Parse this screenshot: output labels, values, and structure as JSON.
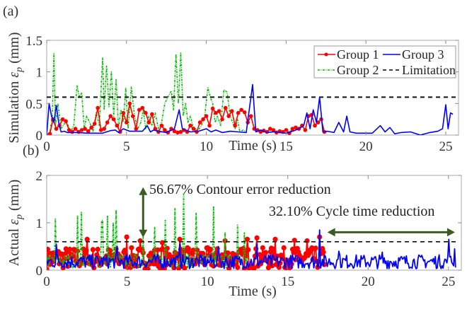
{
  "chart_data": [
    {
      "panel": "(a)",
      "type": "line",
      "ylabel_prefix": "Simulation ",
      "ylabel_symbol": "ε",
      "ylabel_sub": "p",
      "ylabel_suffix": " (mm)",
      "xlabel": "Time (s)",
      "xlim": [
        0,
        25.8
      ],
      "ylim": [
        0,
        1.5
      ],
      "xticks": [
        0,
        5,
        10,
        15,
        20,
        25
      ],
      "yticks": [
        0,
        0.5,
        1,
        1.5
      ],
      "ytick_labels": [
        "0",
        "0.5",
        "1",
        "1.5"
      ],
      "xtick_labels": [
        "0",
        "5",
        "10",
        "15",
        "20",
        "25"
      ],
      "grid": false,
      "legend": {
        "placement": "top-right",
        "columns": 2,
        "entries": [
          "Group 1",
          "Group 3",
          "Group 2",
          "Limitation"
        ]
      },
      "limitation": 0.6,
      "series": [
        {
          "name": "Group 1",
          "color": "#ff0000",
          "style": "solid-with-markers",
          "x": [
            0,
            0.2,
            0.4,
            0.6,
            0.8,
            1.0,
            1.2,
            1.4,
            1.6,
            1.8,
            2.0,
            2.2,
            2.4,
            2.6,
            2.8,
            3.0,
            3.2,
            3.4,
            3.6,
            3.8,
            4.0,
            4.2,
            4.4,
            4.6,
            4.8,
            5.0,
            5.2,
            5.4,
            5.6,
            5.8,
            6.0,
            6.2,
            6.4,
            6.6,
            6.8,
            7.0,
            7.2,
            7.4,
            7.6,
            7.8,
            8.0,
            8.2,
            8.4,
            8.6,
            8.8,
            9.0,
            9.2,
            9.4,
            9.6,
            9.8,
            10.0,
            10.2,
            10.4,
            10.6,
            10.8,
            11.0,
            11.2,
            11.4,
            11.6,
            11.8,
            12.0,
            12.2,
            12.4,
            12.6,
            12.8,
            13.0,
            13.2,
            13.4,
            13.6,
            13.8,
            14.0,
            14.2,
            14.4,
            14.6,
            14.8,
            15.0,
            15.2,
            15.4,
            15.6,
            15.8,
            16.0,
            16.2,
            16.4,
            16.6,
            16.8,
            17.0,
            17.2,
            17.4
          ],
          "y": [
            0.0,
            0.02,
            0.25,
            0.1,
            0.15,
            0.25,
            0.22,
            0.08,
            0.05,
            0.1,
            0.05,
            0.08,
            0.1,
            0.06,
            0.12,
            0.18,
            0.43,
            0.08,
            0.1,
            0.2,
            0.3,
            0.25,
            0.15,
            0.05,
            0.35,
            0.2,
            0.5,
            0.3,
            0.1,
            0.4,
            0.43,
            0.35,
            0.2,
            0.33,
            0.1,
            0.05,
            0.15,
            0.08,
            0.04,
            0.1,
            0.06,
            0.04,
            0.05,
            0.08,
            0.05,
            0.15,
            0.1,
            0.05,
            0.2,
            0.25,
            0.3,
            0.15,
            0.42,
            0.35,
            0.38,
            0.25,
            0.43,
            0.3,
            0.38,
            0.15,
            0.35,
            0.4,
            0.36,
            0.2,
            0.3,
            0.1,
            0.08,
            0.05,
            0.07,
            0.05,
            0.1,
            0.08,
            0.04,
            0.06,
            0.05,
            0.08,
            0.03,
            0.1,
            0.12,
            0.1,
            0.15,
            0.08,
            0.3,
            0.32,
            0.15,
            0.2,
            0.25,
            0.05
          ]
        },
        {
          "name": "Group 2",
          "color": "#00c000",
          "style": "dash-dot",
          "x": [
            0,
            0.2,
            0.35,
            0.45,
            0.55,
            0.7,
            0.9,
            1.1,
            1.3,
            1.5,
            1.7,
            1.9,
            2.05,
            2.2,
            2.35,
            2.5,
            2.7,
            2.9,
            3.1,
            3.3,
            3.5,
            3.6,
            3.75,
            3.9,
            4.05,
            4.2,
            4.35,
            4.5,
            4.65,
            4.8,
            4.95,
            5.1,
            5.3,
            5.5,
            5.7,
            5.9,
            6.05,
            6.2,
            6.4,
            6.6,
            6.8,
            7.0,
            7.2,
            7.4,
            7.6,
            7.8,
            7.95,
            8.1,
            8.25,
            8.4,
            8.55,
            8.7,
            8.85,
            9.0,
            9.15,
            9.3,
            9.5,
            9.7,
            9.9,
            10.1,
            10.25,
            10.4,
            10.55,
            10.7,
            10.9,
            11.1,
            11.3,
            11.5,
            11.65,
            11.8,
            11.95,
            12.1,
            12.3,
            12.5
          ],
          "y": [
            0.0,
            0.05,
            0.3,
            1.29,
            0.15,
            0.5,
            0.1,
            0.18,
            0.18,
            0.05,
            0.15,
            0.78,
            0.6,
            0.67,
            0.1,
            0.3,
            0.2,
            0.05,
            0.35,
            0.15,
            1.22,
            0.4,
            1.1,
            0.45,
            1.0,
            0.3,
            0.88,
            0.1,
            0.4,
            0.2,
            0.75,
            0.1,
            0.76,
            0.3,
            0.1,
            0.2,
            0.4,
            0.1,
            0.3,
            0.15,
            0.35,
            0.1,
            0.2,
            0.5,
            0.6,
            0.7,
            0.4,
            1.28,
            0.5,
            1.3,
            0.3,
            0.5,
            0.2,
            0.3,
            0.15,
            0.1,
            0.08,
            0.15,
            0.3,
            0.75,
            0.6,
            0.5,
            0.2,
            0.3,
            0.15,
            0.72,
            0.68,
            0.3,
            0.2,
            0.1,
            0.25,
            0.05,
            0.08,
            0.05
          ]
        },
        {
          "name": "Group 3",
          "color": "#0000ff",
          "style": "solid",
          "x": [
            0,
            0.15,
            0.3,
            0.45,
            0.6,
            0.75,
            0.9,
            1.1,
            1.3,
            1.6,
            2.0,
            2.5,
            3.0,
            3.5,
            4.0,
            4.3,
            4.5,
            4.8,
            5.2,
            5.6,
            6.0,
            6.3,
            6.5,
            6.7,
            7.0,
            7.5,
            8.0,
            8.3,
            8.5,
            8.7,
            9.0,
            9.5,
            10.0,
            10.3,
            10.6,
            11.0,
            11.5,
            12.0,
            12.5,
            12.9,
            13.1,
            13.4,
            13.8,
            14.2,
            14.6,
            15.0,
            15.4,
            15.8,
            16.1,
            16.3,
            16.5,
            16.7,
            16.9,
            17.1,
            17.3,
            17.6,
            18.0,
            18.3,
            18.6,
            18.8,
            19.0,
            19.4,
            19.8,
            20.4,
            20.9,
            21.2,
            21.5,
            21.8,
            22.2,
            22.8,
            23.4,
            24.0,
            24.5,
            24.8,
            25.0,
            25.15,
            25.3,
            25.45
          ],
          "y": [
            0.0,
            0.5,
            0.3,
            0.2,
            0.47,
            0.2,
            0.05,
            0.06,
            0.04,
            0.04,
            0.04,
            0.03,
            0.03,
            0.03,
            0.07,
            0.08,
            0.04,
            0.1,
            0.06,
            0.06,
            0.06,
            0.15,
            0.05,
            0.08,
            0.06,
            0.04,
            0.1,
            0.4,
            0.1,
            0.08,
            0.05,
            0.06,
            0.1,
            0.05,
            0.08,
            0.04,
            0.06,
            0.05,
            0.04,
            0.8,
            0.05,
            0.08,
            0.04,
            0.05,
            0.04,
            0.03,
            0.06,
            0.1,
            0.15,
            0.35,
            0.1,
            0.4,
            0.2,
            0.6,
            0.05,
            0.06,
            0.04,
            0.2,
            0.05,
            0.3,
            0.05,
            0.03,
            0.03,
            0.03,
            0.15,
            0.05,
            0.12,
            0.02,
            0.04,
            0.05,
            0.0,
            0.04,
            0.06,
            0.1,
            0.48,
            0.1,
            0.35,
            0.33
          ]
        }
      ]
    },
    {
      "panel": "(b)",
      "type": "line",
      "ylabel_prefix": "Actual ",
      "ylabel_symbol": "ε",
      "ylabel_sub": "p",
      "ylabel_suffix": " (mm)",
      "xlabel": "Time (s)",
      "xlim": [
        0,
        25.8
      ],
      "ylim": [
        0,
        2
      ],
      "xticks": [
        0,
        5,
        10,
        15,
        20,
        25
      ],
      "yticks": [
        0,
        1,
        2
      ],
      "ytick_labels": [
        "0",
        "1",
        "2"
      ],
      "xtick_labels": [
        "0",
        "5",
        "10",
        "15",
        "20",
        "25"
      ],
      "grid": false,
      "limitation": 0.6,
      "annotations": [
        {
          "text": "56.67% Contour error reduction",
          "type": "vertical-double-arrow",
          "x": 6.0,
          "y_from": 0.6,
          "y_to": 1.75
        },
        {
          "text": "32.10% Cycle time reduction",
          "type": "horizontal-double-arrow",
          "y": 0.8,
          "x_from": 17.2,
          "x_to": 25.4
        }
      ],
      "annotation_color": "#3d5a25",
      "series": [
        {
          "name": "Group 1",
          "color": "#ff0000",
          "style": "solid-with-markers",
          "t_end": 17.3,
          "mean": 0.25,
          "spread": 0.45,
          "peaks": [
            [
              1.2,
              0.45
            ],
            [
              2.5,
              0.65
            ],
            [
              5.0,
              0.7
            ],
            [
              5.8,
              0.62
            ],
            [
              7.2,
              0.58
            ],
            [
              8.3,
              0.65
            ],
            [
              11.1,
              0.62
            ],
            [
              12.5,
              0.65
            ],
            [
              13.1,
              0.68
            ],
            [
              14.2,
              0.65
            ],
            [
              15.4,
              0.63
            ],
            [
              16.2,
              0.62
            ],
            [
              17.0,
              0.7
            ]
          ]
        },
        {
          "name": "Group 2",
          "color": "#00c000",
          "style": "dash-dot",
          "t_end": 12.6,
          "mean": 0.2,
          "spread": 0.3,
          "peaks": [
            [
              0.55,
              1.08
            ],
            [
              1.9,
              1.15
            ],
            [
              2.15,
              1.22
            ],
            [
              3.45,
              1.05
            ],
            [
              3.8,
              1.15
            ],
            [
              4.15,
              1.0
            ],
            [
              4.3,
              1.27
            ],
            [
              6.0,
              0.7
            ],
            [
              6.7,
              0.9
            ],
            [
              7.4,
              1.05
            ],
            [
              8.0,
              1.3
            ],
            [
              8.5,
              1.6
            ],
            [
              9.3,
              1.2
            ],
            [
              10.4,
              1.35
            ],
            [
              11.1,
              0.8
            ],
            [
              11.9,
              0.95
            ],
            [
              12.3,
              0.8
            ]
          ]
        },
        {
          "name": "Group 3",
          "color": "#0000ff",
          "style": "solid",
          "t_end": 25.45,
          "mean": 0.18,
          "spread": 0.3,
          "peaks": [
            [
              0.6,
              0.55
            ],
            [
              4.4,
              0.5
            ],
            [
              8.3,
              0.55
            ],
            [
              10.7,
              0.5
            ],
            [
              13.1,
              0.55
            ],
            [
              17.0,
              0.85
            ],
            [
              18.2,
              0.4
            ],
            [
              20.9,
              0.38
            ],
            [
              25.0,
              0.65
            ],
            [
              25.4,
              0.45
            ]
          ]
        }
      ]
    }
  ]
}
